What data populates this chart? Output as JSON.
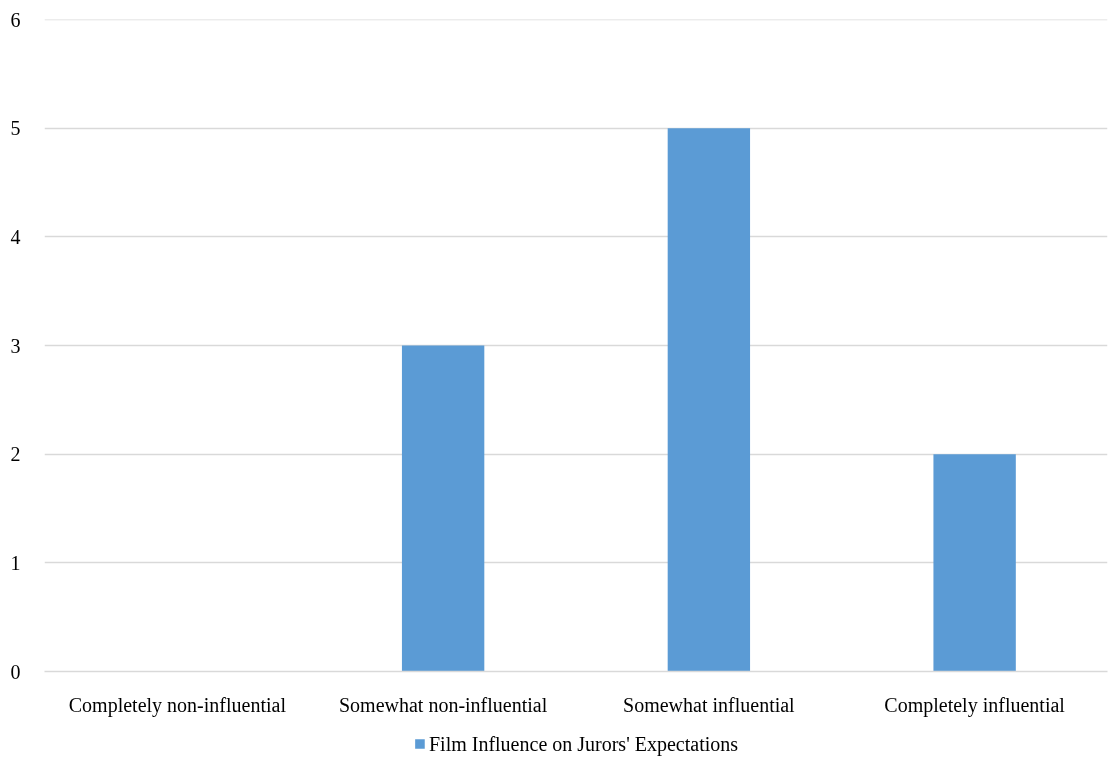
{
  "chart_data": {
    "type": "bar",
    "categories": [
      "Completely non-influential",
      "Somewhat non-influential",
      "Somewhat influential",
      "Completely influential"
    ],
    "series": [
      {
        "name": "Film Influence on Jurors' Expectations",
        "color": "#5b9bd5",
        "values": [
          0,
          3,
          5,
          2
        ]
      }
    ],
    "ylim": [
      0,
      6
    ],
    "yticks": [
      0,
      1,
      2,
      3,
      4,
      5,
      6
    ],
    "grid": "y",
    "legend": "bottom"
  }
}
